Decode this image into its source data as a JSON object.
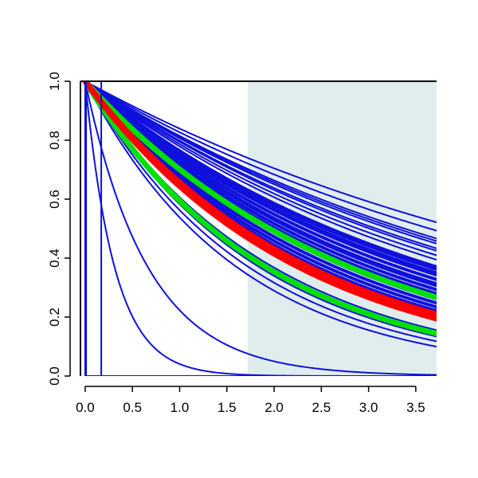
{
  "chart_data": {
    "type": "line",
    "title": "",
    "xlabel": "",
    "ylabel": "",
    "xlim": [
      -0.05,
      3.72
    ],
    "ylim": [
      0,
      1
    ],
    "x_ticks": [
      "0.0",
      "0.5",
      "1.0",
      "1.5",
      "2.0",
      "2.5",
      "3.0",
      "3.5"
    ],
    "y_ticks": [
      "0.0",
      "0.2",
      "0.4",
      "0.6",
      "0.8",
      "1.0"
    ],
    "shaded_region": {
      "x_start": 1.72,
      "x_end": 3.72,
      "color": "#e0eded"
    },
    "colors": {
      "blue": "#1010dd",
      "red": "#ff0000",
      "green": "#00e000",
      "axis": "#000000"
    },
    "series_groups": [
      {
        "kind": "exponential",
        "color": "blue",
        "stroke": "thin",
        "rates": [
          0.175,
          0.19,
          0.205,
          0.21,
          0.215,
          0.225,
          0.23,
          0.24,
          0.25,
          0.265,
          0.275,
          0.28,
          0.29,
          0.3,
          0.31,
          0.32,
          0.33,
          0.34,
          0.355,
          0.62,
          1.5,
          3.2
        ]
      },
      {
        "kind": "exponential",
        "color": "blue",
        "stroke": "thick",
        "rates": [
          0.27,
          0.285,
          0.3,
          0.315,
          0.33,
          0.345,
          0.36,
          0.375,
          0.39,
          0.405,
          0.42
        ]
      },
      {
        "kind": "exponential",
        "color": "blue",
        "stroke": "thin",
        "rates": [
          0.5,
          0.54,
          0.575
        ]
      },
      {
        "kind": "exponential",
        "color": "green",
        "stroke": "bold",
        "rates": [
          0.355,
          0.52
        ]
      },
      {
        "kind": "exponential",
        "color": "red",
        "stroke": "bold",
        "rates": [
          0.42,
          0.44
        ]
      },
      {
        "kind": "step",
        "color": "blue",
        "stroke": "thin",
        "drops_at": [
          0.0,
          0.01,
          0.17
        ]
      }
    ]
  }
}
